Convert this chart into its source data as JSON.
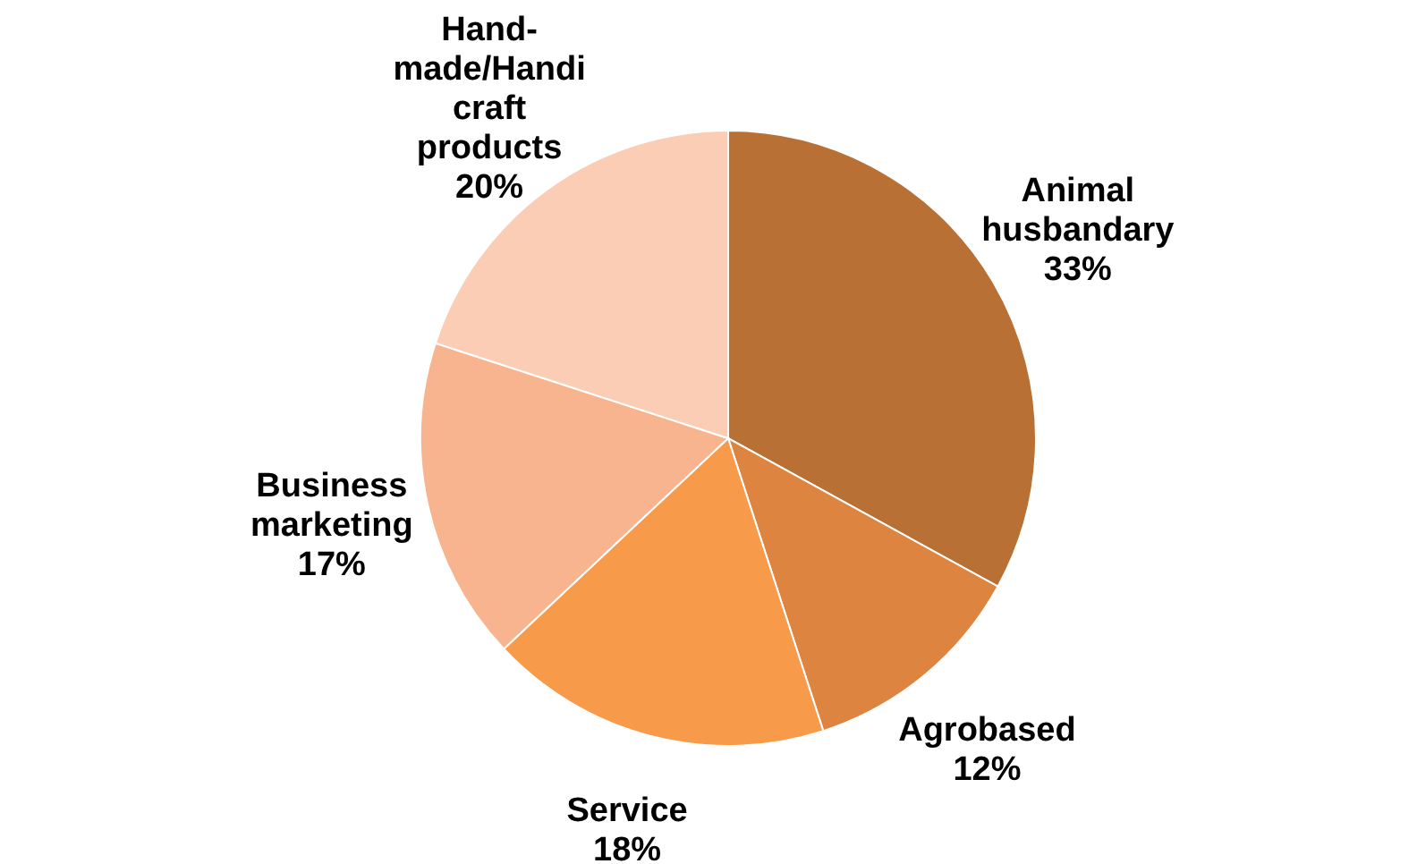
{
  "chart_data": {
    "type": "pie",
    "categories": [
      "Animal husbandary",
      "Agrobased",
      "Service",
      "Business marketing",
      "Hand-made/Handi craft products"
    ],
    "values": [
      33,
      12,
      18,
      17,
      20
    ],
    "colors": [
      "#b87035",
      "#dc8440",
      "#f79a4a",
      "#f7b48e",
      "#fbcdb4"
    ],
    "value_labels": [
      "33%",
      "12%",
      "18%",
      "17%",
      "20%"
    ],
    "legend": false
  }
}
